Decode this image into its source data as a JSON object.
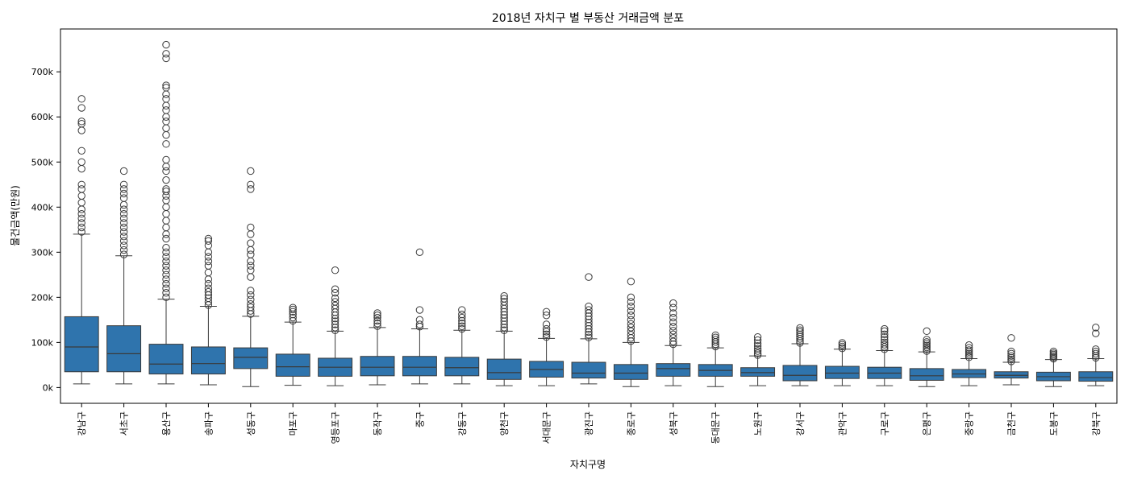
{
  "chart_data": {
    "type": "boxplot",
    "title": "2018년 자치구 별 부동산 거래금액 분포",
    "xlabel": "자치구명",
    "ylabel": "물건금액(만원)",
    "ylim": [
      -35000,
      795000
    ],
    "yticks": [
      0,
      100000,
      200000,
      300000,
      400000,
      500000,
      600000,
      700000
    ],
    "ytick_labels": [
      "0k",
      "100k",
      "200k",
      "300k",
      "400k",
      "500k",
      "600k",
      "700k"
    ],
    "box_color": "#2f74ad",
    "line_color": "#3a3a3a",
    "categories": [
      "강남구",
      "서초구",
      "용산구",
      "송파구",
      "성동구",
      "마포구",
      "영등포구",
      "동작구",
      "중구",
      "강동구",
      "양천구",
      "서대문구",
      "광진구",
      "종로구",
      "성북구",
      "동대문구",
      "노원구",
      "강서구",
      "관악구",
      "구로구",
      "은평구",
      "중랑구",
      "금천구",
      "도봉구",
      "강북구"
    ],
    "series": [
      {
        "category": "강남구",
        "whisker_low": 8000,
        "q1": 35000,
        "median": 90000,
        "q3": 157000,
        "whisker_high": 340000,
        "outliers": [
          345000,
          355000,
          365000,
          375000,
          385000,
          395000,
          410000,
          425000,
          440000,
          450000,
          485000,
          500000,
          525000,
          570000,
          585000,
          590000,
          620000,
          640000
        ]
      },
      {
        "category": "서초구",
        "whisker_low": 8000,
        "q1": 35000,
        "median": 75000,
        "q3": 137000,
        "whisker_high": 292000,
        "outliers": [
          295000,
          305000,
          315000,
          325000,
          335000,
          345000,
          355000,
          365000,
          375000,
          385000,
          395000,
          405000,
          420000,
          430000,
          440000,
          450000,
          480000
        ]
      },
      {
        "category": "용산구",
        "whisker_low": 8000,
        "q1": 30000,
        "median": 52000,
        "q3": 96000,
        "whisker_high": 196000,
        "outliers": [
          200000,
          210000,
          220000,
          230000,
          240000,
          250000,
          260000,
          270000,
          280000,
          290000,
          300000,
          310000,
          330000,
          340000,
          355000,
          370000,
          385000,
          400000,
          415000,
          425000,
          435000,
          440000,
          460000,
          480000,
          490000,
          505000,
          540000,
          560000,
          575000,
          590000,
          600000,
          615000,
          625000,
          640000,
          650000,
          665000,
          670000,
          730000,
          740000,
          760000
        ]
      },
      {
        "category": "송파구",
        "whisker_low": 6000,
        "q1": 30000,
        "median": 53000,
        "q3": 90000,
        "whisker_high": 180000,
        "outliers": [
          183000,
          190000,
          198000,
          205000,
          212000,
          220000,
          230000,
          240000,
          255000,
          270000,
          280000,
          290000,
          300000,
          315000,
          325000,
          330000
        ]
      },
      {
        "category": "성동구",
        "whisker_low": 2000,
        "q1": 42000,
        "median": 67000,
        "q3": 88000,
        "whisker_high": 158000,
        "outliers": [
          163000,
          170000,
          178000,
          185000,
          195000,
          205000,
          215000,
          245000,
          260000,
          270000,
          280000,
          295000,
          305000,
          320000,
          340000,
          355000,
          440000,
          450000,
          480000
        ]
      },
      {
        "category": "마포구",
        "whisker_low": 5000,
        "q1": 25000,
        "median": 46000,
        "q3": 74000,
        "whisker_high": 145000,
        "outliers": [
          148000,
          155000,
          162000,
          168000,
          173000,
          177000
        ]
      },
      {
        "category": "영등포구",
        "whisker_low": 4000,
        "q1": 25000,
        "median": 45000,
        "q3": 65000,
        "whisker_high": 125000,
        "outliers": [
          127000,
          133000,
          140000,
          147000,
          153000,
          160000,
          167000,
          175000,
          182000,
          190000,
          198000,
          210000,
          218000,
          260000
        ]
      },
      {
        "category": "동작구",
        "whisker_low": 6000,
        "q1": 26000,
        "median": 45000,
        "q3": 69000,
        "whisker_high": 133000,
        "outliers": [
          136000,
          142000,
          148000,
          155000,
          160000,
          165000
        ]
      },
      {
        "category": "중구",
        "whisker_low": 8000,
        "q1": 26000,
        "median": 45000,
        "q3": 69000,
        "whisker_high": 130000,
        "outliers": [
          135000,
          140000,
          150000,
          172000,
          300000
        ]
      },
      {
        "category": "강동구",
        "whisker_low": 8000,
        "q1": 26000,
        "median": 44000,
        "q3": 67000,
        "whisker_high": 127000,
        "outliers": [
          130000,
          136000,
          142000,
          148000,
          155000,
          162000,
          172000
        ]
      },
      {
        "category": "양천구",
        "whisker_low": 4000,
        "q1": 18000,
        "median": 33000,
        "q3": 63000,
        "whisker_high": 125000,
        "outliers": [
          127000,
          133000,
          140000,
          147000,
          154000,
          161000,
          168000,
          175000,
          182000,
          190000,
          197000,
          203000
        ]
      },
      {
        "category": "서대문구",
        "whisker_low": 4000,
        "q1": 23000,
        "median": 40000,
        "q3": 58000,
        "whisker_high": 109000,
        "outliers": [
          112000,
          118000,
          124000,
          130000,
          140000,
          160000,
          168000
        ]
      },
      {
        "category": "광진구",
        "whisker_low": 8000,
        "q1": 21000,
        "median": 32000,
        "q3": 56000,
        "whisker_high": 108000,
        "outliers": [
          111000,
          117000,
          123000,
          130000,
          137000,
          144000,
          151000,
          158000,
          165000,
          172000,
          180000,
          245000
        ]
      },
      {
        "category": "종로구",
        "whisker_low": 2000,
        "q1": 18000,
        "median": 32000,
        "q3": 51000,
        "whisker_high": 100000,
        "outliers": [
          103000,
          110000,
          117000,
          125000,
          133000,
          141000,
          150000,
          160000,
          170000,
          180000,
          190000,
          200000,
          235000
        ]
      },
      {
        "category": "성북구",
        "whisker_low": 4000,
        "q1": 25000,
        "median": 42000,
        "q3": 53000,
        "whisker_high": 93000,
        "outliers": [
          96000,
          102000,
          110000,
          118000,
          126000,
          135000,
          145000,
          155000,
          165000,
          177000,
          187000
        ]
      },
      {
        "category": "동대문구",
        "whisker_low": 2000,
        "q1": 25000,
        "median": 38000,
        "q3": 51000,
        "whisker_high": 88000,
        "outliers": [
          91000,
          96000,
          101000,
          106000,
          111000,
          116000
        ]
      },
      {
        "category": "노원구",
        "whisker_low": 4000,
        "q1": 25000,
        "median": 33000,
        "q3": 44000,
        "whisker_high": 70000,
        "outliers": [
          72000,
          76000,
          81000,
          86000,
          92000,
          98000,
          105000,
          112000
        ]
      },
      {
        "category": "강서구",
        "whisker_low": 4000,
        "q1": 15000,
        "median": 27000,
        "q3": 49000,
        "whisker_high": 97000,
        "outliers": [
          99000,
          103000,
          108000,
          113000,
          118000,
          123000,
          127000,
          132000
        ]
      },
      {
        "category": "관악구",
        "whisker_low": 4000,
        "q1": 20000,
        "median": 32000,
        "q3": 47000,
        "whisker_high": 85000,
        "outliers": [
          87000,
          91000,
          95000,
          99000
        ]
      },
      {
        "category": "구로구",
        "whisker_low": 4000,
        "q1": 20000,
        "median": 32000,
        "q3": 45000,
        "whisker_high": 82000,
        "outliers": [
          85000,
          90000,
          95000,
          100000,
          106000,
          112000,
          118000,
          125000,
          130000
        ]
      },
      {
        "category": "은평구",
        "whisker_low": 2000,
        "q1": 16000,
        "median": 26000,
        "q3": 42000,
        "whisker_high": 79000,
        "outliers": [
          81000,
          85000,
          89000,
          93000,
          97000,
          101000,
          106000,
          125000
        ]
      },
      {
        "category": "중랑구",
        "whisker_low": 4000,
        "q1": 22000,
        "median": 30000,
        "q3": 40000,
        "whisker_high": 64000,
        "outliers": [
          67000,
          71000,
          75000,
          79000,
          83000,
          88000,
          94000
        ]
      },
      {
        "category": "금천구",
        "whisker_low": 6000,
        "q1": 21000,
        "median": 27000,
        "q3": 35000,
        "whisker_high": 56000,
        "outliers": [
          58000,
          62000,
          66000,
          70000,
          75000,
          80000,
          110000
        ]
      },
      {
        "category": "도봉구",
        "whisker_low": 2000,
        "q1": 15000,
        "median": 24000,
        "q3": 34000,
        "whisker_high": 62000,
        "outliers": [
          64000,
          67000,
          70000,
          73000,
          76000,
          80000
        ]
      },
      {
        "category": "강북구",
        "whisker_low": 4000,
        "q1": 14000,
        "median": 22000,
        "q3": 35000,
        "whisker_high": 64000,
        "outliers": [
          66000,
          70000,
          75000,
          80000,
          85000,
          120000,
          133000
        ]
      }
    ]
  }
}
